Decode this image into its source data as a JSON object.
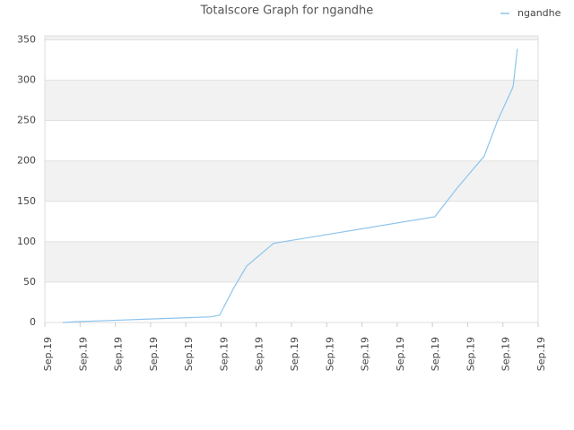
{
  "chart_data": {
    "type": "line",
    "title": "Totalscore Graph for ngandhe",
    "x": [
      0.51,
      0.89,
      1.53,
      2.16,
      2.8,
      3.44,
      4.07,
      4.71,
      4.96,
      5.35,
      5.73,
      6.49,
      11.07,
      11.71,
      12.47,
      12.85,
      13.29,
      13.41
    ],
    "series": [
      {
        "name": "ngandhe",
        "color": "#8cc4ec",
        "values": [
          0,
          1,
          2,
          3,
          4,
          5,
          6,
          7,
          9,
          42,
          70,
          98,
          131,
          167,
          206,
          250,
          292,
          339
        ]
      }
    ],
    "xlim": [
      0,
      14
    ],
    "xticks": [
      {
        "value": 0,
        "label": "Sep.19"
      },
      {
        "value": 1,
        "label": "Sep.19"
      },
      {
        "value": 2,
        "label": "Sep.19"
      },
      {
        "value": 3,
        "label": "Sep.19"
      },
      {
        "value": 4,
        "label": "Sep.19"
      },
      {
        "value": 5,
        "label": "Sep.19"
      },
      {
        "value": 6,
        "label": "Sep.19"
      },
      {
        "value": 7,
        "label": "Sep.19"
      },
      {
        "value": 8,
        "label": "Sep.19"
      },
      {
        "value": 9,
        "label": "Sep.19"
      },
      {
        "value": 10,
        "label": "Sep.19"
      },
      {
        "value": 11,
        "label": "Sep.19"
      },
      {
        "value": 12,
        "label": "Sep.19"
      },
      {
        "value": 13,
        "label": "Sep.19"
      },
      {
        "value": 14,
        "label": "Sep.19"
      }
    ],
    "ylim": [
      0,
      355
    ],
    "yticks": [
      0,
      50,
      100,
      150,
      200,
      250,
      300,
      350
    ],
    "grid": true,
    "legend": "top-right"
  }
}
